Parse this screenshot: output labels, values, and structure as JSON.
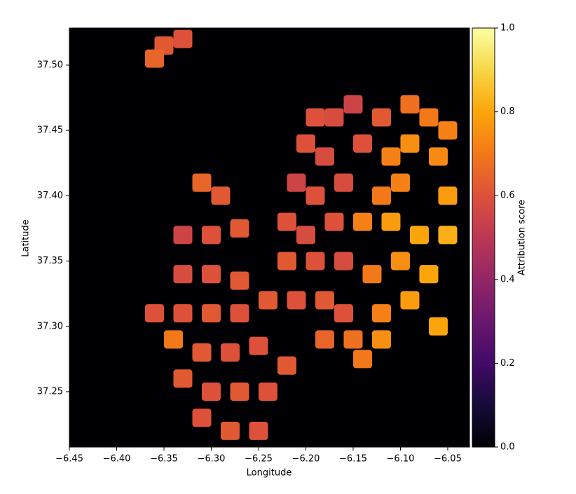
{
  "chart_data": {
    "type": "heatmap",
    "colormap": "inferno",
    "background": "#000004",
    "xlabel": "Longitude",
    "ylabel": "Latitude",
    "colorbar_label": "Attribution score",
    "xlim": [
      -6.45,
      -6.027
    ],
    "ylim": [
      37.2076,
      37.5284
    ],
    "clim": [
      0,
      1
    ],
    "xticks": [
      {
        "value": -6.45,
        "label": "−6.45"
      },
      {
        "value": -6.4,
        "label": "−6.40"
      },
      {
        "value": -6.35,
        "label": "−6.35"
      },
      {
        "value": -6.3,
        "label": "−6.30"
      },
      {
        "value": -6.25,
        "label": "−6.25"
      },
      {
        "value": -6.2,
        "label": "−6.20"
      },
      {
        "value": -6.15,
        "label": "−6.15"
      },
      {
        "value": -6.1,
        "label": "−6.10"
      },
      {
        "value": -6.05,
        "label": "−6.05"
      }
    ],
    "yticks": [
      37.25,
      {
        "value": 37.3,
        "label": "37.30"
      },
      37.35,
      {
        "value": 37.4,
        "label": "37.40"
      },
      37.45,
      {
        "value": 37.5,
        "label": "37.50"
      }
    ],
    "cticks": [
      {
        "value": 0,
        "label": "0.0"
      },
      0.2,
      0.4,
      0.6,
      0.8,
      {
        "value": 1,
        "label": "1.0"
      }
    ],
    "lon": [
      -6.35,
      -6.33,
      -6.36,
      -6.19,
      -6.17,
      -6.15,
      -6.12,
      -6.09,
      -6.07,
      -6.05,
      -6.2,
      -6.18,
      -6.14,
      -6.11,
      -6.09,
      -6.06,
      -6.21,
      -6.19,
      -6.16,
      -6.12,
      -6.1,
      -6.05,
      -6.31,
      -6.29,
      -6.22,
      -6.2,
      -6.17,
      -6.14,
      -6.11,
      -6.08,
      -6.05,
      -6.33,
      -6.3,
      -6.27,
      -6.22,
      -6.19,
      -6.16,
      -6.13,
      -6.1,
      -6.07,
      -6.33,
      -6.3,
      -6.27,
      -6.21,
      -6.18,
      -6.16,
      -6.12,
      -6.09,
      -6.06,
      -6.36,
      -6.33,
      -6.3,
      -6.27,
      -6.24,
      -6.18,
      -6.15,
      -6.12,
      -6.14,
      -6.34,
      -6.31,
      -6.28,
      -6.25,
      -6.22,
      -6.33,
      -6.3,
      -6.27,
      -6.24,
      -6.31,
      -6.28,
      -6.25
    ],
    "lat": [
      37.515,
      37.52,
      37.505,
      37.46,
      37.46,
      37.47,
      37.46,
      37.47,
      37.46,
      37.45,
      37.44,
      37.43,
      37.44,
      37.43,
      37.44,
      37.43,
      37.41,
      37.4,
      37.41,
      37.4,
      37.41,
      37.4,
      37.41,
      37.4,
      37.38,
      37.37,
      37.38,
      37.38,
      37.38,
      37.37,
      37.37,
      37.37,
      37.37,
      37.375,
      37.35,
      37.35,
      37.35,
      37.34,
      37.35,
      37.34,
      37.34,
      37.34,
      37.335,
      37.32,
      37.32,
      37.31,
      37.31,
      37.32,
      37.3,
      37.31,
      37.31,
      37.31,
      37.31,
      37.32,
      37.29,
      37.29,
      37.29,
      37.275,
      37.29,
      37.28,
      37.28,
      37.285,
      37.27,
      37.26,
      37.25,
      37.25,
      37.25,
      37.23,
      37.22,
      37.22
    ],
    "score": [
      0.62,
      0.6,
      0.65,
      0.6,
      0.58,
      0.55,
      0.62,
      0.68,
      0.7,
      0.72,
      0.6,
      0.58,
      0.6,
      0.72,
      0.75,
      0.74,
      0.55,
      0.6,
      0.58,
      0.7,
      0.72,
      0.78,
      0.65,
      0.62,
      0.6,
      0.58,
      0.6,
      0.72,
      0.78,
      0.8,
      0.82,
      0.55,
      0.6,
      0.62,
      0.62,
      0.6,
      0.58,
      0.7,
      0.75,
      0.8,
      0.58,
      0.6,
      0.62,
      0.6,
      0.62,
      0.6,
      0.72,
      0.78,
      0.8,
      0.6,
      0.6,
      0.62,
      0.6,
      0.62,
      0.65,
      0.68,
      0.75,
      0.7,
      0.7,
      0.62,
      0.6,
      0.6,
      0.62,
      0.62,
      0.6,
      0.62,
      0.6,
      0.6,
      0.62,
      0.6
    ]
  }
}
